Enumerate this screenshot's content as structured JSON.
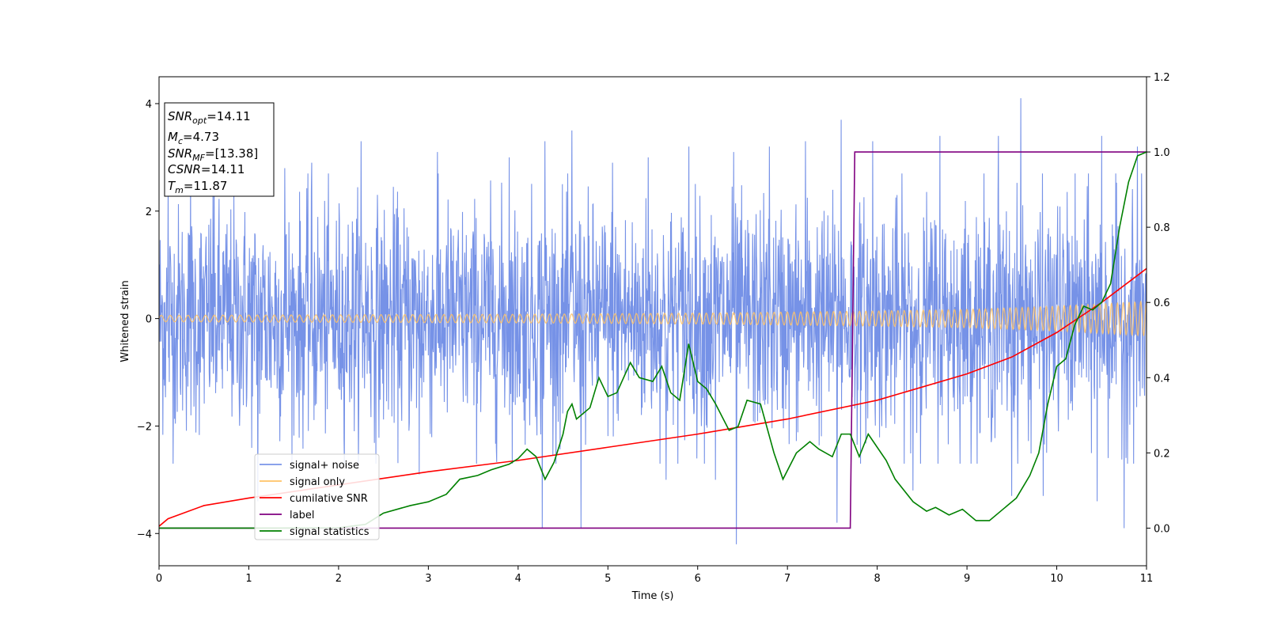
{
  "chart_data": {
    "type": "line",
    "xlabel": "Time (s)",
    "ylabel": "Whitened strain",
    "xlim": [
      0,
      11
    ],
    "ylim_left": [
      -4.6,
      4.5
    ],
    "ylim_right": [
      -0.1,
      1.2
    ],
    "xticks": [
      "0",
      "1",
      "2",
      "3",
      "4",
      "5",
      "6",
      "7",
      "8",
      "9",
      "10",
      "11"
    ],
    "yticks_left": [
      "4",
      "2",
      "0",
      "−2",
      "−4"
    ],
    "yticks_right": [
      "1.2",
      "1.0",
      "0.8",
      "0.6",
      "0.4",
      "0.2",
      "0.0"
    ],
    "legend_position": "lower-left",
    "legend": [
      "signal+ noise",
      "signal only",
      "cumilative SNR",
      "label",
      "signal statistics"
    ],
    "info_box": {
      "snr_opt": {
        "base": "SNR",
        "sub": "opt",
        "value": "=14.11"
      },
      "mc": {
        "base": "M",
        "sub": "c",
        "value": "=4.73"
      },
      "snr_mf": {
        "base": "SNR",
        "sub": "MF",
        "value": "=[13.38]"
      },
      "csnr": {
        "base": "CSNR",
        "sub": "",
        "value": "=14.11"
      },
      "tm": {
        "base": "T",
        "sub": "m",
        "value": "=11.87"
      }
    },
    "series": [
      {
        "name": "signal+ noise",
        "axis": "left",
        "color": "#6a89e5",
        "noise_sigma": 1.05,
        "spikes": [
          [
            0.1,
            2.5
          ],
          [
            0.35,
            2.9
          ],
          [
            0.6,
            2.4
          ],
          [
            1.4,
            2.8
          ],
          [
            1.7,
            2.9
          ],
          [
            2.25,
            3.3
          ],
          [
            3.1,
            3.1
          ],
          [
            3.9,
            3.0
          ],
          [
            4.3,
            3.3
          ],
          [
            4.6,
            3.5
          ],
          [
            5.05,
            2.9
          ],
          [
            5.45,
            3.0
          ],
          [
            5.9,
            3.2
          ],
          [
            6.4,
            3.1
          ],
          [
            6.8,
            3.2
          ],
          [
            7.2,
            3.3
          ],
          [
            7.6,
            3.7
          ],
          [
            7.95,
            3.3
          ],
          [
            8.7,
            3.4
          ],
          [
            9.35,
            3.4
          ],
          [
            9.6,
            4.1
          ],
          [
            10.5,
            3.4
          ],
          [
            10.9,
            3.2
          ],
          [
            4.27,
            -3.9
          ],
          [
            4.7,
            -3.9
          ],
          [
            6.43,
            -4.2
          ],
          [
            7.55,
            -3.8
          ],
          [
            8.4,
            -3.2
          ],
          [
            9.5,
            -3.3
          ],
          [
            9.85,
            -3.3
          ],
          [
            10.45,
            -3.4
          ],
          [
            10.75,
            -3.9
          ],
          [
            1.1,
            -3.4
          ],
          [
            5.65,
            -3.0
          ],
          [
            2.9,
            -2.9
          ],
          [
            6.2,
            -3.0
          ]
        ]
      },
      {
        "name": "signal only",
        "axis": "left",
        "color": "#ffc266",
        "amplitude_points": [
          [
            0,
            0.06
          ],
          [
            2,
            0.07
          ],
          [
            4,
            0.08
          ],
          [
            6,
            0.1
          ],
          [
            8,
            0.14
          ],
          [
            9,
            0.17
          ],
          [
            10,
            0.23
          ],
          [
            11,
            0.32
          ]
        ]
      },
      {
        "name": "cumilative SNR",
        "axis": "right",
        "color": "#ff0000",
        "points": [
          [
            0,
            0.005
          ],
          [
            0.1,
            0.025
          ],
          [
            0.5,
            0.06
          ],
          [
            1,
            0.08
          ],
          [
            2,
            0.115
          ],
          [
            3,
            0.15
          ],
          [
            4,
            0.18
          ],
          [
            5,
            0.215
          ],
          [
            6,
            0.25
          ],
          [
            7,
            0.29
          ],
          [
            8,
            0.34
          ],
          [
            9,
            0.41
          ],
          [
            9.5,
            0.455
          ],
          [
            10,
            0.52
          ],
          [
            10.5,
            0.6
          ],
          [
            11,
            0.69
          ]
        ]
      },
      {
        "name": "label",
        "axis": "right",
        "color": "#800080",
        "points": [
          [
            0,
            0.0
          ],
          [
            7.7,
            0.0
          ],
          [
            7.75,
            1.0
          ],
          [
            11,
            1.0
          ]
        ]
      },
      {
        "name": "signal statistics",
        "axis": "right",
        "color": "#008000",
        "points": [
          [
            0,
            0.0
          ],
          [
            1,
            0.0
          ],
          [
            2,
            0.001
          ],
          [
            2.3,
            0.01
          ],
          [
            2.5,
            0.04
          ],
          [
            2.8,
            0.06
          ],
          [
            3.0,
            0.07
          ],
          [
            3.2,
            0.09
          ],
          [
            3.35,
            0.13
          ],
          [
            3.55,
            0.14
          ],
          [
            3.7,
            0.155
          ],
          [
            3.9,
            0.17
          ],
          [
            4.0,
            0.185
          ],
          [
            4.1,
            0.21
          ],
          [
            4.2,
            0.19
          ],
          [
            4.3,
            0.13
          ],
          [
            4.4,
            0.175
          ],
          [
            4.5,
            0.25
          ],
          [
            4.55,
            0.31
          ],
          [
            4.6,
            0.33
          ],
          [
            4.65,
            0.29
          ],
          [
            4.8,
            0.32
          ],
          [
            4.9,
            0.4
          ],
          [
            5.0,
            0.35
          ],
          [
            5.1,
            0.36
          ],
          [
            5.25,
            0.44
          ],
          [
            5.35,
            0.4
          ],
          [
            5.5,
            0.39
          ],
          [
            5.6,
            0.43
          ],
          [
            5.7,
            0.36
          ],
          [
            5.8,
            0.34
          ],
          [
            5.9,
            0.49
          ],
          [
            6.0,
            0.39
          ],
          [
            6.1,
            0.37
          ],
          [
            6.2,
            0.33
          ],
          [
            6.35,
            0.26
          ],
          [
            6.45,
            0.27
          ],
          [
            6.55,
            0.34
          ],
          [
            6.7,
            0.33
          ],
          [
            6.85,
            0.2
          ],
          [
            6.95,
            0.13
          ],
          [
            7.1,
            0.2
          ],
          [
            7.25,
            0.23
          ],
          [
            7.35,
            0.21
          ],
          [
            7.5,
            0.19
          ],
          [
            7.6,
            0.25
          ],
          [
            7.7,
            0.25
          ],
          [
            7.8,
            0.19
          ],
          [
            7.9,
            0.25
          ],
          [
            8.1,
            0.18
          ],
          [
            8.2,
            0.13
          ],
          [
            8.4,
            0.07
          ],
          [
            8.55,
            0.045
          ],
          [
            8.65,
            0.055
          ],
          [
            8.8,
            0.035
          ],
          [
            8.95,
            0.05
          ],
          [
            9.1,
            0.02
          ],
          [
            9.25,
            0.02
          ],
          [
            9.4,
            0.05
          ],
          [
            9.55,
            0.08
          ],
          [
            9.7,
            0.14
          ],
          [
            9.8,
            0.2
          ],
          [
            9.9,
            0.33
          ],
          [
            10.0,
            0.43
          ],
          [
            10.1,
            0.45
          ],
          [
            10.2,
            0.54
          ],
          [
            10.3,
            0.59
          ],
          [
            10.4,
            0.58
          ],
          [
            10.5,
            0.6
          ],
          [
            10.6,
            0.65
          ],
          [
            10.7,
            0.8
          ],
          [
            10.8,
            0.92
          ],
          [
            10.9,
            0.99
          ],
          [
            11,
            1.0
          ]
        ]
      }
    ]
  }
}
